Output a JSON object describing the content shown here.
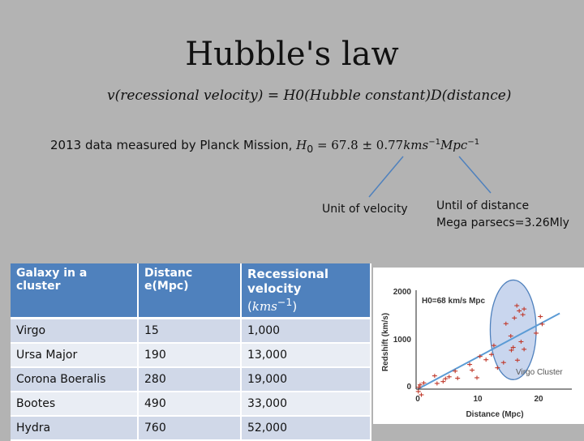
{
  "title": "Hubble's law",
  "formula": "v(recessional velocity) = H0(Hubble constant)D(distance)",
  "planck": {
    "text": "2013 data measured by Planck Mission, ",
    "h0": "H",
    "h0_sub": "0",
    "value": " = 67.8 ± 0.77",
    "unit_kms": "kms",
    "unit_kms_exp": "−1",
    "unit_mpc": "Mpc",
    "unit_mpc_exp": "−1"
  },
  "annotations": {
    "velocity_unit": "Unit of velocity",
    "distance_line1": "Until of distance",
    "distance_line2": "Mega parsecs=3.26Mly"
  },
  "table": {
    "headers": {
      "galaxy": "Galaxy in a cluster",
      "distance": "Distanc e(Mpc)",
      "velocity": "Recessional velocity",
      "velocity_unit_open": "(",
      "velocity_unit": "kms",
      "velocity_unit_exp": "−1",
      "velocity_unit_close": ")"
    },
    "rows": [
      {
        "galaxy": "Virgo",
        "distance": "15",
        "velocity": "1,000"
      },
      {
        "galaxy": "Ursa Major",
        "distance": "190",
        "velocity": "13,000"
      },
      {
        "galaxy": "Corona Boeralis",
        "distance": "280",
        "velocity": "19,000"
      },
      {
        "galaxy": "Bootes",
        "distance": "490",
        "velocity": "33,000"
      },
      {
        "galaxy": "Hydra",
        "distance": "760",
        "velocity": "52,000"
      }
    ]
  },
  "chart_data": {
    "type": "scatter",
    "xlabel": "Distance (Mpc)",
    "ylabel": "Redshift (km/s)",
    "xlim": [
      0,
      22
    ],
    "ylim": [
      0,
      2000
    ],
    "xticks": [
      "0",
      "10",
      "20"
    ],
    "yticks": [
      "0",
      "1000",
      "2000"
    ],
    "annotation": "H0=68 km/s Mpc",
    "cluster_label": "Virgo Cluster",
    "fit": {
      "slope": 68
    },
    "cluster_ellipse": {
      "cx": 15.8,
      "cy": 1250,
      "rx": 3.8,
      "ry": 1050
    },
    "points": [
      [
        0.1,
        -50
      ],
      [
        0.2,
        40
      ],
      [
        0.4,
        90
      ],
      [
        0.6,
        -120
      ],
      [
        1.0,
        130
      ],
      [
        2.8,
        280
      ],
      [
        3.2,
        120
      ],
      [
        4.2,
        160
      ],
      [
        4.6,
        220
      ],
      [
        5.2,
        260
      ],
      [
        6.2,
        380
      ],
      [
        6.6,
        230
      ],
      [
        8.6,
        520
      ],
      [
        9.0,
        400
      ],
      [
        9.8,
        240
      ],
      [
        10.3,
        690
      ],
      [
        11.3,
        620
      ],
      [
        12.2,
        730
      ],
      [
        12.6,
        920
      ],
      [
        13.2,
        450
      ],
      [
        14.2,
        560
      ],
      [
        14.6,
        1380
      ],
      [
        15.4,
        1120
      ],
      [
        15.5,
        820
      ],
      [
        15.8,
        880
      ],
      [
        16.0,
        1500
      ],
      [
        16.4,
        1760
      ],
      [
        16.8,
        1650
      ],
      [
        17.4,
        1570
      ],
      [
        17.6,
        1690
      ],
      [
        17.1,
        1000
      ],
      [
        17.6,
        840
      ],
      [
        16.5,
        610
      ],
      [
        19.6,
        1180
      ],
      [
        20.3,
        1530
      ],
      [
        20.6,
        1370
      ]
    ]
  }
}
